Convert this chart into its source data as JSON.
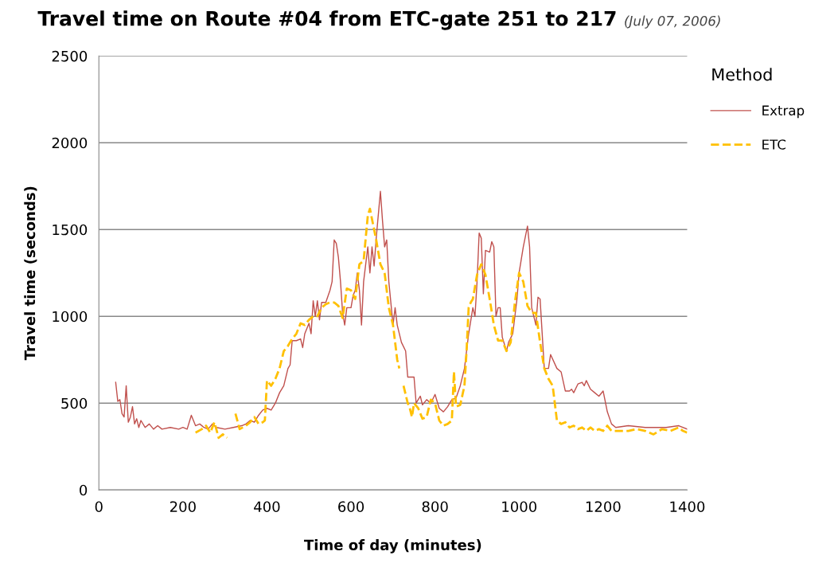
{
  "chart_data": {
    "type": "line",
    "title": "Travel time on Route #04 from ETC-gate 251 to 217",
    "subtitle": "(July 07, 2006)",
    "xlabel": "Time of day (minutes)",
    "ylabel": "Travel time (seconds)",
    "legend_title": "Method",
    "legend": "top right",
    "grid": "y",
    "xlim": [
      0,
      1400
    ],
    "ylim": [
      0,
      2500
    ],
    "xticks": [
      0,
      200,
      400,
      600,
      800,
      1000,
      1200,
      1400
    ],
    "yticks": [
      0,
      500,
      1000,
      1500,
      2000,
      2500
    ],
    "series": [
      {
        "name": "Extrap",
        "color": "#c0504d",
        "line_style": "solid",
        "x": [
          40,
          45,
          50,
          55,
          60,
          65,
          70,
          75,
          80,
          85,
          90,
          95,
          100,
          110,
          120,
          130,
          140,
          150,
          170,
          190,
          200,
          210,
          220,
          230,
          240,
          250,
          260,
          270,
          280,
          300,
          320,
          340,
          350,
          360,
          370,
          380,
          390,
          400,
          410,
          420,
          430,
          440,
          450,
          455,
          460,
          470,
          480,
          485,
          490,
          500,
          505,
          510,
          515,
          520,
          525,
          530,
          540,
          550,
          555,
          560,
          565,
          570,
          575,
          580,
          585,
          590,
          600,
          605,
          610,
          615,
          620,
          625,
          630,
          640,
          645,
          650,
          655,
          660,
          670,
          675,
          680,
          685,
          690,
          700,
          705,
          710,
          720,
          730,
          735,
          750,
          755,
          765,
          770,
          780,
          790,
          800,
          810,
          820,
          830,
          840,
          850,
          860,
          870,
          880,
          890,
          895,
          900,
          905,
          910,
          915,
          920,
          930,
          935,
          940,
          945,
          950,
          955,
          960,
          970,
          975,
          985,
          990,
          995,
          1000,
          1010,
          1020,
          1025,
          1030,
          1040,
          1045,
          1050,
          1060,
          1070,
          1075,
          1090,
          1100,
          1110,
          1120,
          1125,
          1130,
          1140,
          1150,
          1155,
          1160,
          1170,
          1180,
          1190,
          1200,
          1210,
          1220,
          1230,
          1260,
          1300,
          1350,
          1380,
          1400
        ],
        "values": [
          620,
          510,
          520,
          440,
          420,
          600,
          390,
          420,
          480,
          380,
          410,
          360,
          400,
          360,
          380,
          350,
          370,
          350,
          360,
          350,
          360,
          350,
          430,
          370,
          380,
          360,
          350,
          380,
          360,
          350,
          360,
          370,
          380,
          400,
          390,
          430,
          460,
          470,
          460,
          500,
          560,
          600,
          700,
          720,
          860,
          860,
          870,
          820,
          900,
          960,
          900,
          1090,
          1000,
          1090,
          980,
          1080,
          1080,
          1150,
          1200,
          1440,
          1420,
          1340,
          1200,
          1020,
          950,
          1050,
          1050,
          1120,
          1150,
          1250,
          1150,
          950,
          1200,
          1400,
          1250,
          1400,
          1290,
          1450,
          1720,
          1550,
          1400,
          1440,
          1200,
          950,
          1050,
          950,
          850,
          800,
          650,
          650,
          500,
          540,
          490,
          520,
          500,
          550,
          470,
          450,
          480,
          520,
          530,
          600,
          700,
          900,
          1050,
          1000,
          1200,
          1480,
          1450,
          1130,
          1380,
          1370,
          1430,
          1400,
          1000,
          1050,
          1050,
          880,
          800,
          850,
          900,
          1000,
          1100,
          1250,
          1400,
          1520,
          1400,
          1050,
          950,
          1110,
          1100,
          700,
          700,
          780,
          700,
          680,
          570,
          570,
          580,
          560,
          610,
          620,
          600,
          630,
          580,
          560,
          540,
          570,
          450,
          380,
          360,
          370,
          360,
          360,
          370,
          350
        ]
      },
      {
        "name": "ETC",
        "color": "#ffc000",
        "line_style": "dashed",
        "x": [
          230,
          245,
          255,
          265,
          275,
          285,
          295,
          305,
          315,
          325,
          335,
          350,
          360,
          370,
          380,
          390,
          395,
          400,
          410,
          420,
          430,
          440,
          450,
          460,
          470,
          480,
          490,
          500,
          510,
          520,
          530,
          540,
          550,
          560,
          570,
          580,
          590,
          600,
          610,
          620,
          630,
          640,
          645,
          650,
          660,
          670,
          680,
          690,
          700,
          710,
          715,
          720,
          725,
          735,
          740,
          745,
          750,
          760,
          770,
          780,
          790,
          800,
          810,
          820,
          830,
          840,
          845,
          850,
          860,
          870,
          875,
          880,
          885,
          890,
          900,
          910,
          920,
          930,
          940,
          950,
          960,
          970,
          980,
          990,
          1000,
          1010,
          1020,
          1030,
          1040,
          1050,
          1060,
          1070,
          1080,
          1090,
          1100,
          1110,
          1120,
          1130,
          1140,
          1150,
          1160,
          1170,
          1180,
          1190,
          1200,
          1210,
          1220,
          1240,
          1260,
          1280,
          1300,
          1320,
          1340,
          1360,
          1380,
          1390,
          1400
        ],
        "values": [
          330,
          350,
          370,
          330,
          390,
          300,
          320,
          300,
          null,
          440,
          350,
          370,
          390,
          420,
          380,
          390,
          400,
          630,
          600,
          640,
          700,
          800,
          830,
          870,
          900,
          960,
          950,
          980,
          1000,
          1000,
          1050,
          1070,
          1080,
          1080,
          1060,
          990,
          1160,
          1150,
          1100,
          1300,
          1320,
          1580,
          1620,
          1560,
          1440,
          1300,
          1250,
          1050,
          950,
          750,
          700,
          null,
          600,
          500,
          470,
          420,
          500,
          470,
          410,
          420,
          520,
          500,
          400,
          370,
          380,
          400,
          680,
          480,
          490,
          600,
          800,
          1050,
          1080,
          1100,
          1240,
          1300,
          1240,
          1100,
          950,
          860,
          860,
          800,
          850,
          1080,
          1250,
          1200,
          1060,
          1020,
          1020,
          850,
          700,
          640,
          600,
          400,
          380,
          390,
          360,
          370,
          350,
          360,
          340,
          360,
          340,
          350,
          340,
          370,
          340,
          340,
          340,
          350,
          340,
          320,
          350,
          340,
          360,
          340,
          330
        ]
      }
    ]
  }
}
